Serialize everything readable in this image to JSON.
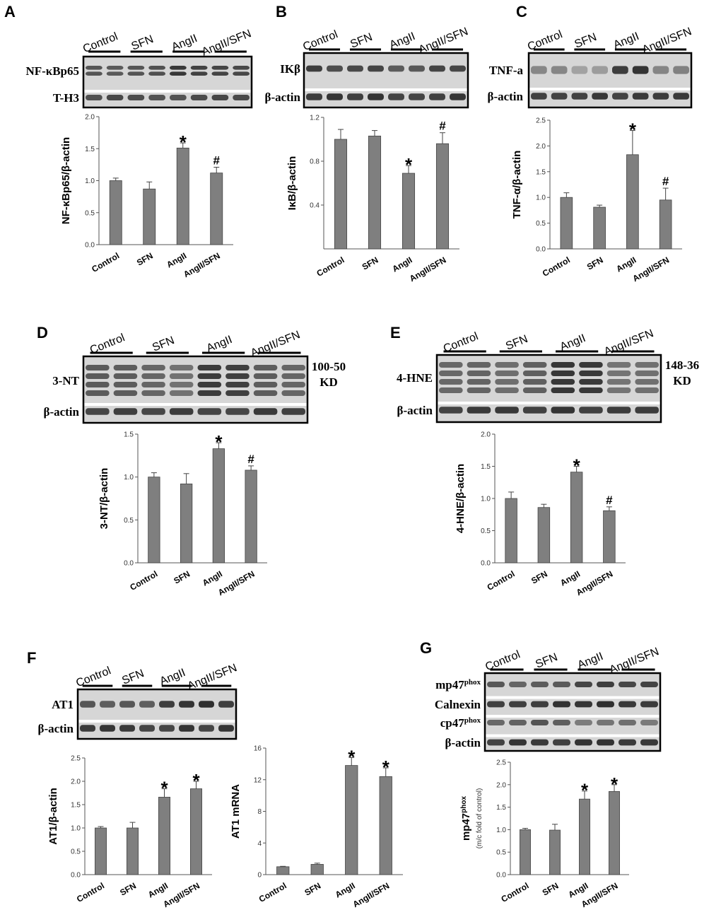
{
  "groups": [
    "Control",
    "SFN",
    "AngII",
    "AngII/SFN"
  ],
  "bar_color": "#7f7f7f",
  "blots": [
    {
      "id": "A",
      "letter": "A",
      "rows": [
        "NF-κBp65",
        "T-H3"
      ]
    },
    {
      "id": "B",
      "letter": "B",
      "rows": [
        "IKβ",
        "β-actin"
      ]
    },
    {
      "id": "C",
      "letter": "C",
      "rows": [
        "TNF-a",
        "β-actin"
      ]
    },
    {
      "id": "D",
      "letter": "D",
      "rows": [
        "3-NT",
        "β-actin"
      ],
      "size_label": [
        "100-50",
        "KD"
      ]
    },
    {
      "id": "E",
      "letter": "E",
      "rows": [
        "4-HNE",
        "β-actin"
      ],
      "size_label": [
        "148-36",
        "KD"
      ]
    },
    {
      "id": "F",
      "letter": "F",
      "rows": [
        "AT1",
        "β-actin"
      ]
    },
    {
      "id": "G",
      "letter": "G",
      "rows": [
        "mp47",
        "Calnexin",
        "cp47",
        "β-actin"
      ],
      "sup": "phox"
    }
  ],
  "chart_data": [
    {
      "id": "A",
      "type": "bar",
      "ylabel": "NF-κBp65/β-actin",
      "categories": [
        "Control",
        "SFN",
        "AngII",
        "AngII/SFN"
      ],
      "values": [
        1.0,
        0.87,
        1.51,
        1.12
      ],
      "errors": [
        0.04,
        0.11,
        0.08,
        0.09
      ],
      "marks": [
        "",
        "",
        "*",
        "#"
      ],
      "ylim": [
        0,
        2.0
      ],
      "ticks": [
        0,
        0.5,
        1.0,
        1.5,
        2.0
      ],
      "tick_labels": [
        "0.0",
        "0.5",
        "1.0",
        "1.5",
        "2.0"
      ]
    },
    {
      "id": "B",
      "type": "bar",
      "ylabel": "IκB/β-actin",
      "categories": [
        "Control",
        "SFN",
        "AngII",
        "AngII/SFN"
      ],
      "values": [
        1.0,
        1.03,
        0.69,
        0.96
      ],
      "errors": [
        0.09,
        0.05,
        0.07,
        0.1
      ],
      "marks": [
        "",
        "",
        "*",
        "#"
      ],
      "ylim": [
        0,
        1.2
      ],
      "ticks": [
        0.4,
        0.8,
        1.2
      ],
      "tick_labels": [
        "0.4",
        "0.8",
        "1.2"
      ]
    },
    {
      "id": "C",
      "type": "bar",
      "ylabel": "TNF-α/β-actin",
      "categories": [
        "Control",
        "SFN",
        "AngII",
        "AngII/SFN"
      ],
      "values": [
        1.0,
        0.81,
        1.83,
        0.95
      ],
      "errors": [
        0.09,
        0.04,
        0.47,
        0.23
      ],
      "marks": [
        "",
        "",
        "*",
        "#"
      ],
      "ylim": [
        0,
        2.5
      ],
      "ticks": [
        0,
        0.5,
        1.0,
        1.5,
        2.0,
        2.5
      ],
      "tick_labels": [
        "0.0",
        "0.5",
        "1.0",
        "1.5",
        "2.0",
        "2.5"
      ]
    },
    {
      "id": "D",
      "type": "bar",
      "ylabel": "3-NT/β-actin",
      "categories": [
        "Control",
        "SFN",
        "AngII",
        "AngII/SFN"
      ],
      "values": [
        1.0,
        0.92,
        1.33,
        1.08
      ],
      "errors": [
        0.05,
        0.12,
        0.07,
        0.05
      ],
      "marks": [
        "",
        "",
        "*",
        "#"
      ],
      "ylim": [
        0,
        1.5
      ],
      "ticks": [
        0,
        0.5,
        1.0,
        1.5
      ],
      "tick_labels": [
        "0.0",
        "0.5",
        "1.0",
        "1.5"
      ]
    },
    {
      "id": "E",
      "type": "bar",
      "ylabel": "4-HNE/β-actin",
      "categories": [
        "Control",
        "SFN",
        "AngII",
        "AngII/SFN"
      ],
      "values": [
        1.0,
        0.86,
        1.41,
        0.81
      ],
      "errors": [
        0.1,
        0.05,
        0.09,
        0.06
      ],
      "marks": [
        "",
        "",
        "*",
        "#"
      ],
      "ylim": [
        0,
        2.0
      ],
      "ticks": [
        0,
        0.5,
        1.0,
        1.5,
        2.0
      ],
      "tick_labels": [
        "0.0",
        "0.5",
        "1.0",
        "1.5",
        "2.0"
      ]
    },
    {
      "id": "F1",
      "type": "bar",
      "ylabel": "AT1/β-actin",
      "categories": [
        "Control",
        "SFN",
        "AngII",
        "AngII/SFN"
      ],
      "values": [
        1.0,
        1.0,
        1.66,
        1.84
      ],
      "errors": [
        0.03,
        0.12,
        0.18,
        0.16
      ],
      "marks": [
        "",
        "",
        "*",
        "*"
      ],
      "ylim": [
        0,
        2.5
      ],
      "ticks": [
        0,
        0.5,
        1.0,
        1.5,
        2.0,
        2.5
      ],
      "tick_labels": [
        "0.0",
        "0.5",
        "1.0",
        "1.5",
        "2.0",
        "2.5"
      ]
    },
    {
      "id": "F2",
      "type": "bar",
      "ylabel": "AT1 mRNA",
      "categories": [
        "Control",
        "SFN",
        "AngII",
        "AngII/SFN"
      ],
      "values": [
        1.0,
        1.3,
        13.8,
        12.4
      ],
      "errors": [
        0.05,
        0.15,
        1.0,
        1.1
      ],
      "marks": [
        "",
        "",
        "*",
        "*"
      ],
      "ylim": [
        0,
        16
      ],
      "ticks": [
        0,
        4,
        8,
        12,
        16
      ],
      "tick_labels": [
        "0",
        "4",
        "8",
        "12",
        "16"
      ]
    },
    {
      "id": "G",
      "type": "bar",
      "ylabel": "mp47",
      "ylabel_sup": "phox",
      "ylabel2": "(m/c fold of control)",
      "categories": [
        "Control",
        "SFN",
        "AngII",
        "AngII/SFN"
      ],
      "values": [
        1.0,
        0.99,
        1.68,
        1.85
      ],
      "errors": [
        0.03,
        0.13,
        0.18,
        0.15
      ],
      "marks": [
        "",
        "",
        "*",
        "*"
      ],
      "ylim": [
        0,
        2.5
      ],
      "ticks": [
        0,
        0.5,
        1.0,
        1.5,
        2.0,
        2.5
      ],
      "tick_labels": [
        "0.0",
        "0.5",
        "1.0",
        "1.5",
        "2.0",
        "2.5"
      ]
    }
  ]
}
